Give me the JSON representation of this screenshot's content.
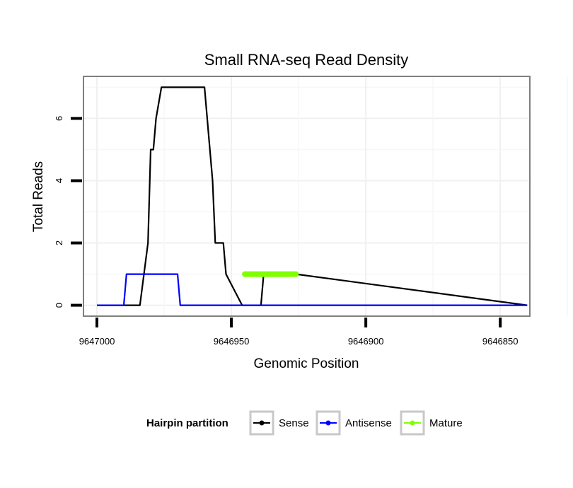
{
  "chart_data": {
    "type": "line",
    "title": "Small RNA-seq Read Density",
    "xlabel": "Genomic Position",
    "ylabel": "Total Reads",
    "xlim": [
      9647005,
      9646839
    ],
    "ylim": [
      -0.35,
      7.35
    ],
    "x_reversed": true,
    "xticks": [
      9647000,
      9646950,
      9646900,
      9646850
    ],
    "xtick_labels": [
      "9647000",
      "9646950",
      "9646900",
      "9646850"
    ],
    "yticks": [
      0,
      2,
      4,
      6
    ],
    "ytick_labels": [
      "0",
      "2",
      "4",
      "6"
    ],
    "grid": true,
    "legend": {
      "title": "Hairpin partition",
      "position": "bottom",
      "entries": [
        "Sense",
        "Antisense",
        "Mature"
      ]
    },
    "series": [
      {
        "name": "Sense",
        "color": "#000000",
        "x": [
          9647000,
          9646984,
          9646981,
          9646980,
          9646979,
          9646978,
          9646976,
          9646960,
          9646959,
          9646958,
          9646957,
          9646956,
          9646953,
          9646952,
          9646946,
          9646939,
          9646938,
          9646926,
          9646840
        ],
        "y": [
          0,
          0,
          2,
          5,
          5,
          6,
          7,
          7,
          6,
          5,
          4,
          2,
          2,
          1,
          0,
          0,
          1,
          1,
          0
        ]
      },
      {
        "name": "Antisense",
        "color": "#0000ff",
        "x": [
          9647000,
          9646990,
          9646989,
          9646970,
          9646969,
          9646840
        ],
        "y": [
          0,
          0,
          1,
          1,
          0,
          0
        ]
      },
      {
        "name": "Mature",
        "color": "#7fff00",
        "x": [
          9646945,
          9646926
        ],
        "y": [
          1,
          1
        ]
      }
    ]
  }
}
